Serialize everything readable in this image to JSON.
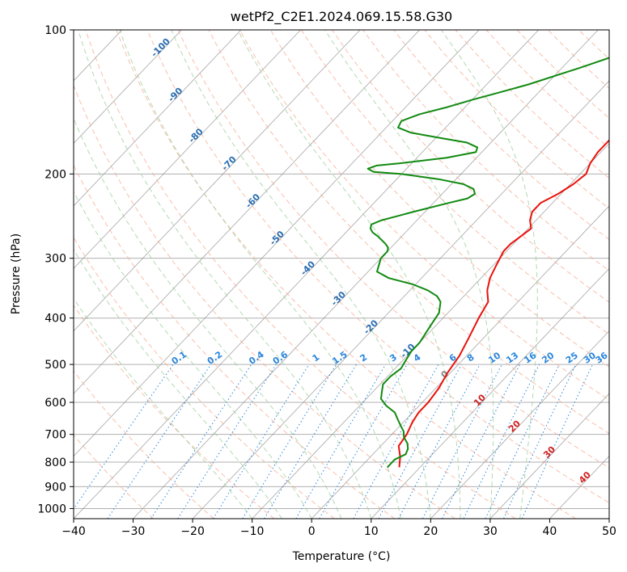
{
  "chart_data": {
    "type": "skew-t",
    "title": "wetPf2_C2E1.2024.069.15.58.G30",
    "xlabel": "Temperature (°C)",
    "ylabel": "Pressure (hPa)",
    "xlim": [
      -40,
      50
    ],
    "ylim": [
      1050,
      100
    ],
    "x_ticks": [
      -40,
      -30,
      -20,
      -10,
      0,
      10,
      20,
      30,
      40,
      50
    ],
    "x_tick_labels": [
      "−40",
      "−30",
      "−20",
      "−10",
      "0",
      "10",
      "20",
      "30",
      "40",
      "50"
    ],
    "y_ticks": [
      100,
      200,
      300,
      400,
      500,
      600,
      700,
      800,
      900,
      1000
    ],
    "y_tick_labels": [
      "100",
      "200",
      "300",
      "400",
      "500",
      "600",
      "700",
      "800",
      "900",
      "1000"
    ],
    "grid": true,
    "colors": {
      "temperature": "#e8120c",
      "dewpoint": "#118a11",
      "dry_adiabat": "#f6a98f",
      "moist_adiabat": "#9fcf9f",
      "mixing_ratio": "#2a86dc",
      "isotherm_label": "#2a6db0",
      "isotherm_label_positive": "#d02020",
      "isotherm_label_zero": "#808080",
      "grid": "#b0b0b0",
      "isotherm": "#888888"
    },
    "isotherm_labels": [
      {
        "t": -100,
        "p": 110,
        "text": "-100"
      },
      {
        "t": -90,
        "p": 138,
        "text": "-90"
      },
      {
        "t": -80,
        "p": 168,
        "text": "-80"
      },
      {
        "t": -70,
        "p": 192,
        "text": "-70"
      },
      {
        "t": -60,
        "p": 230,
        "text": "-60"
      },
      {
        "t": -50,
        "p": 275,
        "text": "-50"
      },
      {
        "t": -40,
        "p": 318,
        "text": "-40"
      },
      {
        "t": -30,
        "p": 368,
        "text": "-30"
      },
      {
        "t": -20,
        "p": 422,
        "text": "-20"
      },
      {
        "t": -10,
        "p": 473,
        "text": "-10"
      },
      {
        "t": 0,
        "p": 530,
        "text": "0"
      },
      {
        "t": 10,
        "p": 600,
        "text": "10"
      },
      {
        "t": 20,
        "p": 680,
        "text": "20"
      },
      {
        "t": 30,
        "p": 770,
        "text": "30"
      },
      {
        "t": 40,
        "p": 870,
        "text": "40"
      }
    ],
    "mixing_ratio_labels": [
      "0.1",
      "0.2",
      "0.4",
      "0.6",
      "1",
      "1.5",
      "2",
      "3",
      "4",
      "6",
      "8",
      "10",
      "13",
      "16",
      "20",
      "25",
      "30",
      "36"
    ],
    "mixing_ratio_label_x": [
      -22,
      -16,
      -9,
      -5,
      1,
      5,
      9,
      14,
      18,
      24,
      27,
      31,
      34,
      37,
      40,
      44,
      47,
      49
    ],
    "mixing_ratio_label_p": 490,
    "temperature_profile": {
      "name": "Temperature",
      "p": [
        820,
        780,
        740,
        700,
        660,
        630,
        600,
        560,
        520,
        480,
        440,
        400,
        370,
        350,
        330,
        310,
        290,
        280,
        270,
        260,
        250,
        240,
        230,
        220,
        210,
        200,
        190,
        180,
        170,
        160,
        150,
        140,
        130,
        120,
        110,
        100
      ],
      "t": [
        6.5,
        5.0,
        3.0,
        2.5,
        1.5,
        1.0,
        1.0,
        0.5,
        -0.5,
        -1.2,
        -2.5,
        -4.0,
        -5.0,
        -7.0,
        -8.5,
        -9.5,
        -10.5,
        -10.5,
        -10.0,
        -9.5,
        -11.0,
        -12.0,
        -12.0,
        -10.5,
        -9.5,
        -9.0,
        -10.0,
        -10.5,
        -10.5,
        -11.0,
        -12.5,
        -14.0,
        -15.5,
        -16.5,
        -18.0,
        -19.0
      ]
    },
    "dewpoint_profile": {
      "name": "Dewpoint",
      "p": [
        820,
        790,
        770,
        750,
        730,
        710,
        690,
        670,
        650,
        630,
        610,
        590,
        570,
        550,
        530,
        510,
        490,
        470,
        450,
        430,
        410,
        390,
        370,
        360,
        350,
        340,
        330,
        320,
        300,
        290,
        285,
        280,
        270,
        265,
        260,
        255,
        250,
        245,
        240,
        230,
        225,
        220,
        215,
        210,
        205,
        200,
        198,
        195,
        192,
        190,
        185,
        180,
        176,
        172,
        168,
        164,
        160,
        155,
        150,
        145,
        140,
        135,
        130,
        120,
        110,
        100
      ],
      "t": [
        4.5,
        4.5,
        5.5,
        5.0,
        4.0,
        2.5,
        1.5,
        0.0,
        -1.5,
        -3.0,
        -5.5,
        -7.5,
        -8.5,
        -9.5,
        -9.5,
        -9.0,
        -9.5,
        -10.0,
        -10.0,
        -10.5,
        -11.0,
        -11.5,
        -13.0,
        -14.5,
        -17.0,
        -20.5,
        -25.5,
        -28.5,
        -30.0,
        -30.0,
        -30.5,
        -31.5,
        -34.0,
        -35.5,
        -36.5,
        -37.0,
        -36.0,
        -34.0,
        -32.0,
        -27.5,
        -25.0,
        -24.5,
        -25.5,
        -28.0,
        -33.0,
        -40.0,
        -45.0,
        -46.5,
        -45.5,
        -42.0,
        -35.0,
        -31.0,
        -31.5,
        -34.0,
        -39.5,
        -45.0,
        -48.0,
        -48.5,
        -46.5,
        -43.0,
        -40.0,
        -36.5,
        -33.0,
        -27.0,
        -21.0,
        -16.5
      ]
    }
  }
}
